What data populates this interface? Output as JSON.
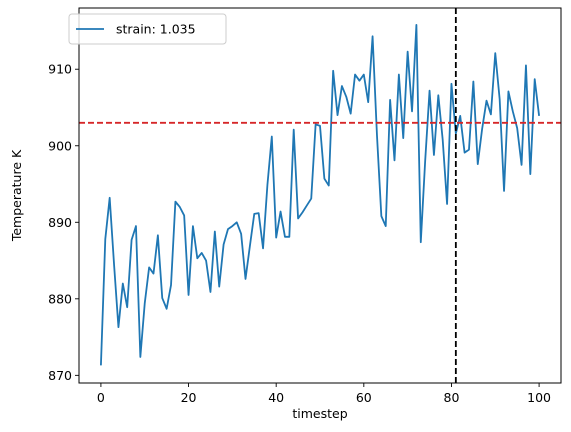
{
  "chart_data": {
    "type": "line",
    "xlabel": "timestep",
    "ylabel": "Temperature K",
    "xlim": [
      -5,
      105
    ],
    "ylim": [
      869,
      918
    ],
    "xticks": [
      0,
      20,
      40,
      60,
      80,
      100
    ],
    "yticks": [
      870,
      880,
      890,
      900,
      910
    ],
    "grid": false,
    "legend_position": "top-left",
    "series": [
      {
        "name": "strain: 1.035",
        "color": "#1f77b4",
        "x": [
          0,
          1,
          2,
          3,
          4,
          5,
          6,
          7,
          8,
          9,
          10,
          11,
          12,
          13,
          14,
          15,
          16,
          17,
          18,
          19,
          20,
          21,
          22,
          23,
          24,
          25,
          26,
          27,
          28,
          29,
          30,
          31,
          32,
          33,
          34,
          35,
          36,
          37,
          38,
          39,
          40,
          41,
          42,
          43,
          44,
          45,
          46,
          47,
          48,
          49,
          50,
          51,
          52,
          53,
          54,
          55,
          56,
          57,
          58,
          59,
          60,
          61,
          62,
          63,
          64,
          65,
          66,
          67,
          68,
          69,
          70,
          71,
          72,
          73,
          74,
          75,
          76,
          77,
          78,
          79,
          80,
          81,
          82,
          83,
          84,
          85,
          86,
          87,
          88,
          89,
          90,
          91,
          92,
          93,
          94,
          95,
          96,
          97,
          98,
          99,
          100
        ],
        "y": [
          871.3,
          887.8,
          893.2,
          884.5,
          876.3,
          882.0,
          878.9,
          887.7,
          889.5,
          872.4,
          879.4,
          884.1,
          883.3,
          888.3,
          880.1,
          878.7,
          881.8,
          892.7,
          892.0,
          890.9,
          880.5,
          889.5,
          885.3,
          886.0,
          885.0,
          880.9,
          888.8,
          881.6,
          887.1,
          889.1,
          889.5,
          890.0,
          888.5,
          882.6,
          886.9,
          891.1,
          891.2,
          886.6,
          894.9,
          901.2,
          888.0,
          891.4,
          888.1,
          888.1,
          902.1,
          890.5,
          891.3,
          892.2,
          893.1,
          902.8,
          902.6,
          895.7,
          894.8,
          909.8,
          904.0,
          907.8,
          906.4,
          904.2,
          909.3,
          908.5,
          909.3,
          905.7,
          914.3,
          901.4,
          890.8,
          889.5,
          906.0,
          898.1,
          909.3,
          901.0,
          912.3,
          904.5,
          915.8,
          887.4,
          898.0,
          907.2,
          898.8,
          906.6,
          900.8,
          892.4,
          908.1,
          901.6,
          903.9,
          899.1,
          899.5,
          908.4,
          897.6,
          902.2,
          905.9,
          904.1,
          912.1,
          906.1,
          894.1,
          907.1,
          904.5,
          902.3,
          897.5,
          910.5,
          896.3,
          908.7,
          903.9
        ]
      }
    ],
    "reference_lines": [
      {
        "orientation": "horizontal",
        "value": 903.0,
        "color": "#d62728",
        "style": "dashed"
      },
      {
        "orientation": "vertical",
        "value": 81,
        "color": "#000000",
        "style": "dashed"
      }
    ]
  }
}
